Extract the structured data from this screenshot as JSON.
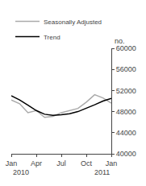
{
  "chart_data": {
    "type": "line",
    "ylabel": "no.",
    "categories": [
      "Jan",
      null,
      null,
      "Apr",
      null,
      null,
      "Jul",
      null,
      null,
      "Oct",
      null,
      null,
      "Jan"
    ],
    "series": [
      {
        "name": "Seasonally Adjusted",
        "color": "#aaaaaa",
        "values": [
          50200,
          49500,
          47800,
          48200,
          46900,
          47100,
          47800,
          48200,
          48600,
          49800,
          51200,
          50600,
          49600
        ]
      },
      {
        "name": "Trend",
        "color": "#000000",
        "values": [
          51000,
          50200,
          49200,
          48200,
          47500,
          47300,
          47400,
          47600,
          48000,
          48600,
          49300,
          50000,
          50500
        ]
      }
    ],
    "ylim": [
      40000,
      60000
    ],
    "yticks": [
      40000,
      44000,
      48000,
      52000,
      56000,
      60000
    ],
    "annotations": [
      "2010",
      "2011"
    ],
    "legend": "upper left",
    "grid": false
  }
}
